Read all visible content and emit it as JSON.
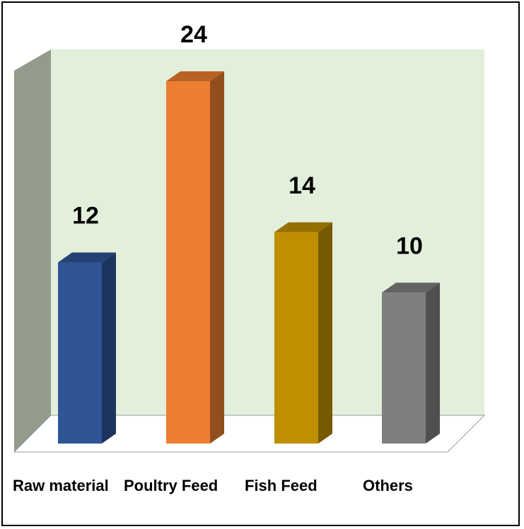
{
  "chart_data": {
    "type": "bar",
    "categories": [
      "Raw material",
      "Poultry Feed",
      "Fish Feed",
      "Others"
    ],
    "values": [
      12,
      24,
      14,
      10
    ],
    "colors": [
      "#2F5597",
      "#ED7D31",
      "#BF8F00",
      "#7F7F7F"
    ],
    "title": "",
    "xlabel": "",
    "ylabel": "",
    "ylim": [
      0,
      24
    ],
    "grid": false,
    "legend": "none",
    "style": "3d-column",
    "back_wall_color": "#E2EFDA",
    "side_wall_color": "#939C8C"
  }
}
